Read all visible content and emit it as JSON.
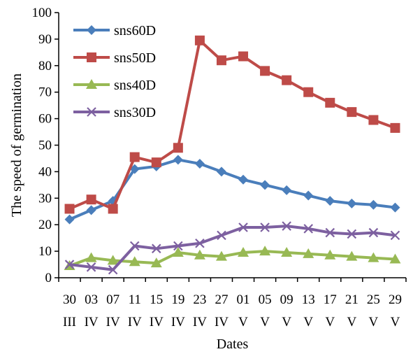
{
  "chart_data": {
    "type": "line",
    "title": "",
    "xlabel": "Dates",
    "ylabel": "The speed of germination",
    "ylim": [
      0,
      100
    ],
    "yticks": [
      0,
      10,
      20,
      30,
      40,
      50,
      60,
      70,
      80,
      90,
      100
    ],
    "grid": false,
    "legend_position": "top-left",
    "categories": [
      {
        "day": "30",
        "month": "III"
      },
      {
        "day": "03",
        "month": "IV"
      },
      {
        "day": "07",
        "month": "IV"
      },
      {
        "day": "11",
        "month": "IV"
      },
      {
        "day": "15",
        "month": "IV"
      },
      {
        "day": "19",
        "month": "IV"
      },
      {
        "day": "23",
        "month": "IV"
      },
      {
        "day": "27",
        "month": "IV"
      },
      {
        "day": "01",
        "month": "V"
      },
      {
        "day": "05",
        "month": "V"
      },
      {
        "day": "09",
        "month": "V"
      },
      {
        "day": "13",
        "month": "V"
      },
      {
        "day": "17",
        "month": "V"
      },
      {
        "day": "21",
        "month": "V"
      },
      {
        "day": "25",
        "month": "V"
      },
      {
        "day": "29",
        "month": "V"
      }
    ],
    "series": [
      {
        "name": "sns60D",
        "color": "#4a7ebb",
        "marker": "diamond",
        "values": [
          22,
          25.5,
          29,
          41,
          42,
          44.5,
          43,
          40,
          37,
          35,
          33,
          31,
          29,
          28,
          27.5,
          26.5
        ]
      },
      {
        "name": "sns50D",
        "color": "#be4b48",
        "marker": "square",
        "values": [
          26,
          29.5,
          26,
          45.5,
          43.5,
          49,
          89.5,
          82,
          83.5,
          78,
          74.5,
          70,
          66,
          62.5,
          59.5,
          56.5
        ]
      },
      {
        "name": "sns40D",
        "color": "#98b954",
        "marker": "triangle",
        "values": [
          4.5,
          7.5,
          6.5,
          6,
          5.5,
          9.5,
          8.5,
          8,
          9.5,
          10,
          9.5,
          9,
          8.5,
          8,
          7.5,
          7
        ]
      },
      {
        "name": "sns30D",
        "color": "#7d60a0",
        "marker": "x",
        "values": [
          5,
          4,
          3,
          12,
          11,
          12,
          13,
          16,
          19,
          19,
          19.5,
          18.5,
          17,
          16.5,
          17,
          16
        ]
      }
    ]
  }
}
